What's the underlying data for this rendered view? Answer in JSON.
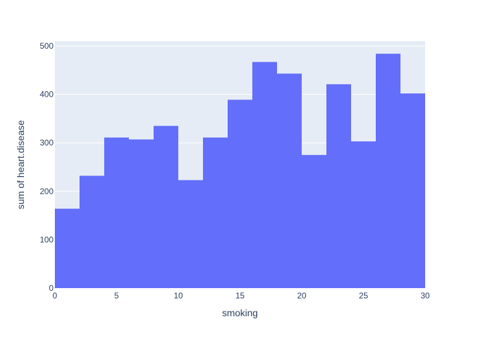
{
  "chart_data": {
    "type": "bar",
    "title": "",
    "xlabel": "smoking",
    "ylabel": "sum of heart.disease",
    "bin_width": 2,
    "x": [
      1,
      3,
      5,
      7,
      9,
      11,
      13,
      15,
      17,
      19,
      21,
      23,
      25,
      27,
      29
    ],
    "values": [
      164,
      232,
      311,
      307,
      335,
      223,
      311,
      389,
      467,
      443,
      275,
      421,
      303,
      484,
      402
    ],
    "xlim": [
      0,
      30
    ],
    "ylim": [
      0,
      510
    ],
    "xticks": [
      0,
      5,
      10,
      15,
      20,
      25,
      30
    ],
    "yticks": [
      0,
      100,
      200,
      300,
      400,
      500
    ],
    "grid": true,
    "colors": {
      "bar": "#636efa",
      "plot_background": "#e5ecf6",
      "gridline": "#ffffff",
      "text": "#2a3f5f"
    }
  }
}
